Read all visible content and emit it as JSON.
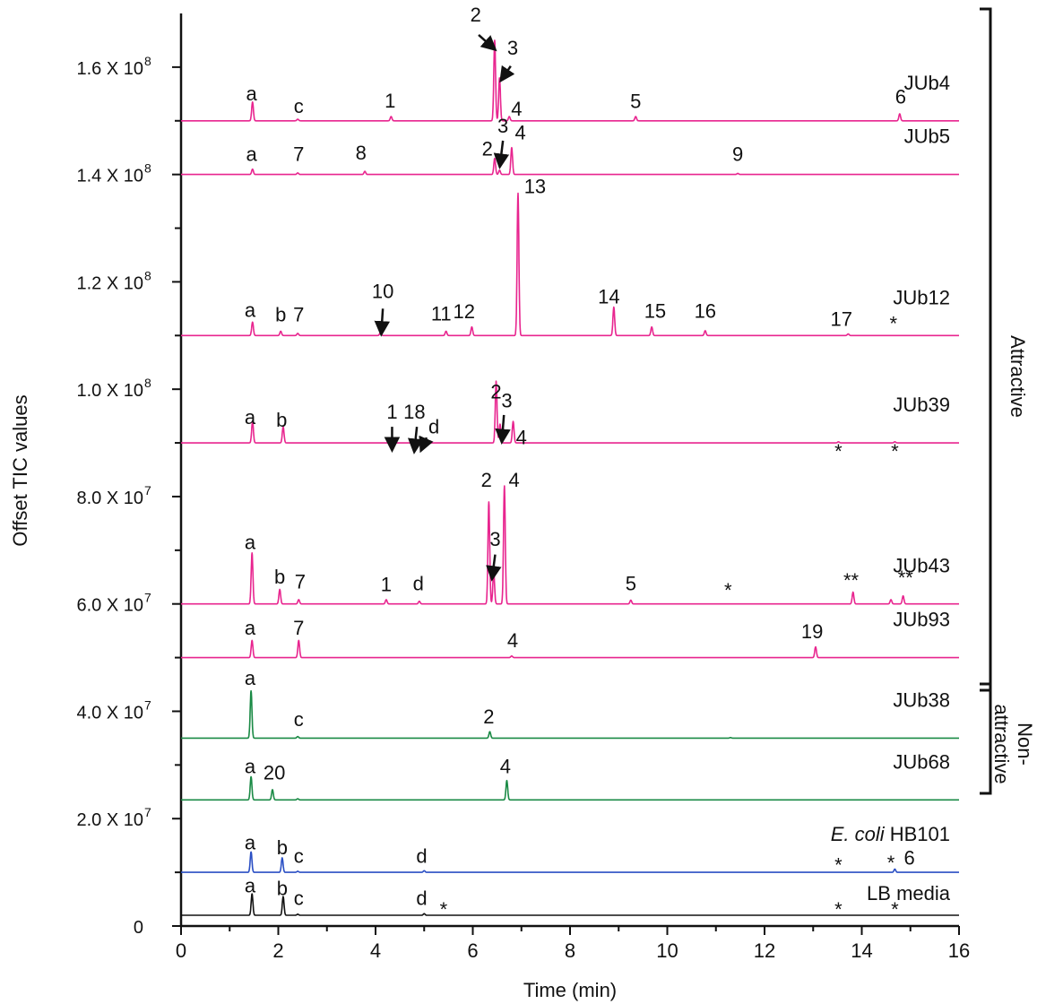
{
  "chart_data": {
    "type": "line",
    "xlabel": "Time (min)",
    "ylabel": "Offset TIC values",
    "xlim": [
      0,
      16
    ],
    "ylim": [
      0,
      170000000
    ],
    "x_ticks": [
      "0",
      "2",
      "4",
      "6",
      "8",
      "10",
      "12",
      "14",
      "16"
    ],
    "y_ticks": [
      {
        "value": 0,
        "mant": "0",
        "exp": ""
      },
      {
        "value": 20000000,
        "mant": "2.0 X 10",
        "exp": "7"
      },
      {
        "value": 40000000,
        "mant": "4.0 X 10",
        "exp": "7"
      },
      {
        "value": 60000000,
        "mant": "6.0 X 10",
        "exp": "7"
      },
      {
        "value": 80000000,
        "mant": "8.0 X 10",
        "exp": "7"
      },
      {
        "value": 100000000,
        "mant": "1.0 X 10",
        "exp": "8"
      },
      {
        "value": 120000000,
        "mant": "1.2 X 10",
        "exp": "8"
      },
      {
        "value": 140000000,
        "mant": "1.4 X 10",
        "exp": "8"
      },
      {
        "value": 160000000,
        "mant": "1.6 X 10",
        "exp": "8"
      }
    ],
    "colors": {
      "attractive": "#e8258f",
      "non_attractive": "#1a8a45",
      "ecoli": "#2a4fc4",
      "lb": "#111111"
    },
    "groups": [
      {
        "label": "Attractive",
        "from": "JUb4",
        "to": "JUb93"
      },
      {
        "label": "Non-\nattractive",
        "from": "JUb38",
        "to": "JUb68"
      }
    ],
    "series": [
      {
        "name": "JUb4",
        "color_key": "attractive",
        "baseline": 150000000,
        "peaks": [
          [
            1.47,
            3500000
          ],
          [
            2.4,
            300000
          ],
          [
            4.32,
            800000
          ],
          [
            6.45,
            15000000
          ],
          [
            6.55,
            8000000
          ],
          [
            6.75,
            800000
          ],
          [
            9.35,
            800000
          ],
          [
            14.78,
            1300000
          ]
        ],
        "labels": [
          {
            "text": "a",
            "x": 1.45,
            "y": 153800000
          },
          {
            "text": "c",
            "x": 2.42,
            "y": 151500000
          },
          {
            "text": "1",
            "x": 4.3,
            "y": 152500000
          },
          {
            "text": "2",
            "x": 6.06,
            "y": 168500000
          },
          {
            "text": "3",
            "x": 6.82,
            "y": 162300000
          },
          {
            "text": "4",
            "x": 6.9,
            "y": 151000000
          },
          {
            "text": "5",
            "x": 9.35,
            "y": 152400000
          },
          {
            "text": "6",
            "x": 14.8,
            "y": 153200000
          }
        ],
        "arrows": [
          [
            6.12,
            166000000,
            6.43,
            163500000
          ],
          [
            6.78,
            160200000,
            6.6,
            157800000
          ]
        ]
      },
      {
        "name": "JUb5",
        "color_key": "attractive",
        "baseline": 140000000,
        "peaks": [
          [
            1.47,
            1000000
          ],
          [
            2.4,
            300000
          ],
          [
            3.78,
            600000
          ],
          [
            6.45,
            3000000
          ],
          [
            6.55,
            800000
          ],
          [
            6.8,
            5000000
          ],
          [
            11.45,
            200000
          ]
        ],
        "labels": [
          {
            "text": "a",
            "x": 1.45,
            "y": 142500000
          },
          {
            "text": "7",
            "x": 2.42,
            "y": 142500000
          },
          {
            "text": "8",
            "x": 3.7,
            "y": 142800000
          },
          {
            "text": "2",
            "x": 6.3,
            "y": 143500000
          },
          {
            "text": "3",
            "x": 6.62,
            "y": 147800000
          },
          {
            "text": "4",
            "x": 6.98,
            "y": 146500000
          },
          {
            "text": "9",
            "x": 11.45,
            "y": 142500000
          }
        ],
        "arrows": [
          [
            6.62,
            146300000,
            6.56,
            141800000
          ]
        ]
      },
      {
        "name": "JUb12",
        "color_key": "attractive",
        "baseline": 110000000,
        "peaks": [
          [
            1.47,
            2500000
          ],
          [
            2.05,
            800000
          ],
          [
            2.4,
            400000
          ],
          [
            4.1,
            500000
          ],
          [
            5.45,
            800000
          ],
          [
            5.98,
            1600000
          ],
          [
            6.93,
            26500000
          ],
          [
            8.9,
            5300000
          ],
          [
            9.68,
            1600000
          ],
          [
            10.78,
            900000
          ],
          [
            13.72,
            300000
          ]
        ],
        "labels": [
          {
            "text": "a",
            "x": 1.42,
            "y": 113500000
          },
          {
            "text": "b",
            "x": 2.05,
            "y": 112600000
          },
          {
            "text": "7",
            "x": 2.42,
            "y": 112600000
          },
          {
            "text": "10",
            "x": 4.15,
            "y": 117000000
          },
          {
            "text": "11",
            "x": 5.35,
            "y": 112800000
          },
          {
            "text": "12",
            "x": 5.82,
            "y": 113200000
          },
          {
            "text": "13",
            "x": 7.28,
            "y": 136500000
          },
          {
            "text": "14",
            "x": 8.8,
            "y": 116000000
          },
          {
            "text": "15",
            "x": 9.75,
            "y": 113300000
          },
          {
            "text": "16",
            "x": 10.78,
            "y": 113300000
          },
          {
            "text": "17",
            "x": 13.58,
            "y": 111800000
          },
          {
            "text": "*",
            "x": 14.65,
            "y": 111000000
          }
        ],
        "arrows": [
          [
            4.15,
            115000000,
            4.12,
            110600000
          ]
        ]
      },
      {
        "name": "JUb39",
        "color_key": "attractive",
        "baseline": 90000000,
        "peaks": [
          [
            1.47,
            4000000
          ],
          [
            2.1,
            3000000
          ],
          [
            4.3,
            200000
          ],
          [
            4.9,
            300000
          ],
          [
            6.48,
            11500000
          ],
          [
            6.56,
            3500000
          ],
          [
            6.83,
            4000000
          ],
          [
            13.52,
            200000
          ],
          [
            14.68,
            200000
          ]
        ],
        "labels": [
          {
            "text": "a",
            "x": 1.42,
            "y": 93500000
          },
          {
            "text": "b",
            "x": 2.07,
            "y": 93000000
          },
          {
            "text": "1",
            "x": 4.34,
            "y": 94500000
          },
          {
            "text": "18",
            "x": 4.8,
            "y": 94500000
          },
          {
            "text": "d",
            "x": 5.2,
            "y": 91800000
          },
          {
            "text": "2",
            "x": 6.48,
            "y": 98300000
          },
          {
            "text": "3",
            "x": 6.7,
            "y": 96600000
          },
          {
            "text": "4",
            "x": 7.0,
            "y": 89800000
          },
          {
            "text": "*",
            "x": 13.52,
            "y": 87200000
          },
          {
            "text": "*",
            "x": 14.68,
            "y": 87200000
          }
        ],
        "arrows": [
          [
            4.34,
            93000000,
            4.34,
            89000000
          ],
          [
            4.85,
            93000000,
            4.8,
            88700000
          ],
          [
            5.05,
            91000000,
            4.95,
            88900000
          ],
          [
            6.64,
            95200000,
            6.6,
            90500000
          ]
        ]
      },
      {
        "name": "JUb43",
        "color_key": "attractive",
        "baseline": 60000000,
        "peaks": [
          [
            1.46,
            9500000
          ],
          [
            2.03,
            2700000
          ],
          [
            2.42,
            800000
          ],
          [
            4.22,
            800000
          ],
          [
            4.9,
            500000
          ],
          [
            6.33,
            19000000
          ],
          [
            6.43,
            6000000
          ],
          [
            6.65,
            22000000
          ],
          [
            9.25,
            700000
          ],
          [
            13.82,
            2200000
          ],
          [
            14.6,
            800000
          ],
          [
            14.85,
            1500000
          ]
        ],
        "labels": [
          {
            "text": "a",
            "x": 1.42,
            "y": 70200000
          },
          {
            "text": "b",
            "x": 2.03,
            "y": 63800000
          },
          {
            "text": "7",
            "x": 2.45,
            "y": 62900000
          },
          {
            "text": "1",
            "x": 4.22,
            "y": 62400000
          },
          {
            "text": "d",
            "x": 4.88,
            "y": 62500000
          },
          {
            "text": "2",
            "x": 6.28,
            "y": 81800000
          },
          {
            "text": "3",
            "x": 6.46,
            "y": 70800000
          },
          {
            "text": "4",
            "x": 6.85,
            "y": 81800000
          },
          {
            "text": "5",
            "x": 9.25,
            "y": 62500000
          },
          {
            "text": "*",
            "x": 11.25,
            "y": 61300000
          },
          {
            "text": "**",
            "x": 13.78,
            "y": 63100000
          },
          {
            "text": "**",
            "x": 14.9,
            "y": 63600000
          }
        ],
        "arrows": [
          [
            6.46,
            69200000,
            6.4,
            65000000
          ]
        ]
      },
      {
        "name": "JUb93",
        "color_key": "attractive",
        "baseline": 50000000,
        "peaks": [
          [
            1.46,
            3200000
          ],
          [
            2.42,
            3200000
          ],
          [
            6.8,
            300000
          ],
          [
            13.05,
            2000000
          ]
        ],
        "labels": [
          {
            "text": "a",
            "x": 1.42,
            "y": 54300000
          },
          {
            "text": "7",
            "x": 2.42,
            "y": 54300000
          },
          {
            "text": "4",
            "x": 6.82,
            "y": 51900000
          },
          {
            "text": "19",
            "x": 12.98,
            "y": 53600000
          }
        ],
        "arrows": []
      },
      {
        "name": "JUb38",
        "color_key": "non_attractive",
        "baseline": 35000000,
        "peaks": [
          [
            1.44,
            8800000
          ],
          [
            2.4,
            300000
          ],
          [
            6.35,
            1200000
          ],
          [
            11.3,
            100000
          ]
        ],
        "labels": [
          {
            "text": "a",
            "x": 1.42,
            "y": 44900000
          },
          {
            "text": "c",
            "x": 2.42,
            "y": 37200000
          },
          {
            "text": "2",
            "x": 6.33,
            "y": 37700000
          }
        ],
        "arrows": []
      },
      {
        "name": "JUb68",
        "color_key": "non_attractive",
        "baseline": 23500000,
        "peaks": [
          [
            1.44,
            4300000
          ],
          [
            1.88,
            1900000
          ],
          [
            2.4,
            200000
          ],
          [
            6.7,
            3600000
          ]
        ],
        "labels": [
          {
            "text": "a",
            "x": 1.42,
            "y": 28500000
          },
          {
            "text": "20",
            "x": 1.92,
            "y": 27300000
          },
          {
            "text": "4",
            "x": 6.67,
            "y": 28500000
          }
        ],
        "arrows": []
      },
      {
        "name_parts": [
          "E. coli",
          " HB101"
        ],
        "color_key": "ecoli",
        "baseline": 10000000,
        "peaks": [
          [
            1.44,
            3800000
          ],
          [
            2.08,
            2700000
          ],
          [
            2.4,
            200000
          ],
          [
            5.0,
            300000
          ],
          [
            14.68,
            600000
          ]
        ],
        "labels": [
          {
            "text": "a",
            "x": 1.42,
            "y": 14300000
          },
          {
            "text": "b",
            "x": 2.08,
            "y": 13400000
          },
          {
            "text": "c",
            "x": 2.42,
            "y": 11800000
          },
          {
            "text": "d",
            "x": 4.95,
            "y": 11800000
          },
          {
            "text": "*",
            "x": 13.52,
            "y": 10100000
          },
          {
            "text": "*",
            "x": 14.6,
            "y": 10500000
          },
          {
            "text": "6",
            "x": 14.98,
            "y": 11400000
          }
        ],
        "arrows": []
      },
      {
        "name": "LB media",
        "color_key": "lb",
        "baseline": 2000000,
        "peaks": [
          [
            1.46,
            4000000
          ],
          [
            2.1,
            3500000
          ],
          [
            2.4,
            200000
          ],
          [
            5.0,
            300000
          ]
        ],
        "labels": [
          {
            "text": "a",
            "x": 1.42,
            "y": 6300000
          },
          {
            "text": "b",
            "x": 2.08,
            "y": 5800000
          },
          {
            "text": "c",
            "x": 2.42,
            "y": 3900000
          },
          {
            "text": "d",
            "x": 4.95,
            "y": 3900000
          },
          {
            "text": "*",
            "x": 5.4,
            "y": 1800000
          },
          {
            "text": "*",
            "x": 13.52,
            "y": 1800000
          },
          {
            "text": "*",
            "x": 14.68,
            "y": 1800000
          }
        ],
        "arrows": []
      }
    ]
  }
}
